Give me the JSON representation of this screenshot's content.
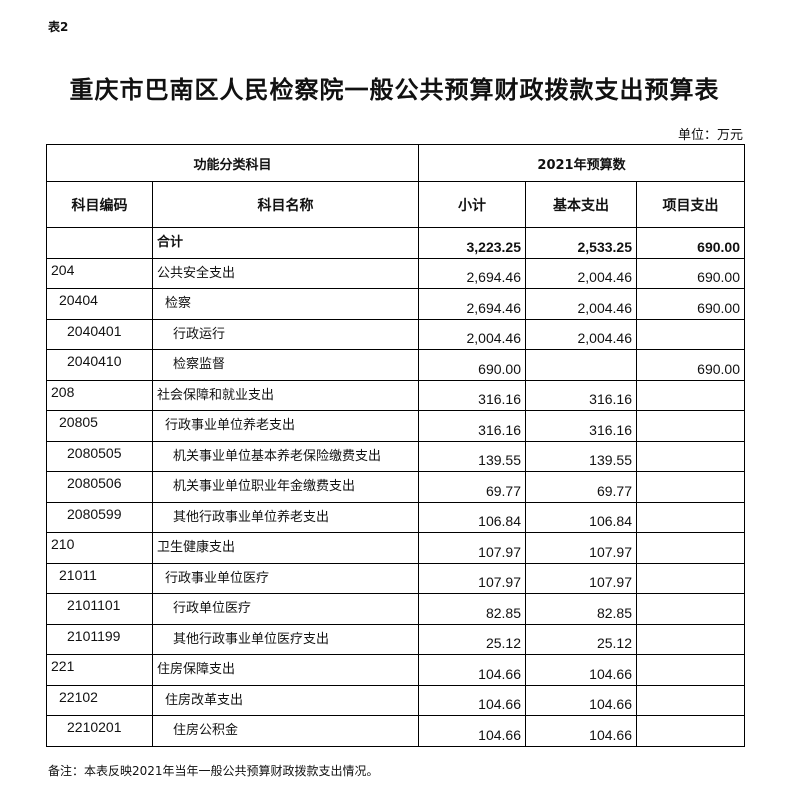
{
  "doc_label": "表2",
  "title": "重庆市巴南区人民检察院一般公共预算财政拨款支出预算表",
  "unit": "单位：万元",
  "header": {
    "group1": "功能分类科目",
    "group2": "2021年预算数",
    "code": "科目编码",
    "name": "科目名称",
    "subtotal": "小计",
    "basic": "基本支出",
    "project": "项目支出"
  },
  "rows": [
    {
      "code": "",
      "name": "合计",
      "subtotal": "3,223.25",
      "basic": "2,533.25",
      "project": "690.00",
      "level": 0,
      "total": true
    },
    {
      "code": "204",
      "name": "公共安全支出",
      "subtotal": "2,694.46",
      "basic": "2,004.46",
      "project": "690.00",
      "level": 1
    },
    {
      "code": "20404",
      "name": "检察",
      "subtotal": "2,694.46",
      "basic": "2,004.46",
      "project": "690.00",
      "level": 2
    },
    {
      "code": "2040401",
      "name": "行政运行",
      "subtotal": "2,004.46",
      "basic": "2,004.46",
      "project": "",
      "level": 3
    },
    {
      "code": "2040410",
      "name": "检察监督",
      "subtotal": "690.00",
      "basic": "",
      "project": "690.00",
      "level": 3
    },
    {
      "code": "208",
      "name": "社会保障和就业支出",
      "subtotal": "316.16",
      "basic": "316.16",
      "project": "",
      "level": 1
    },
    {
      "code": "20805",
      "name": "行政事业单位养老支出",
      "subtotal": "316.16",
      "basic": "316.16",
      "project": "",
      "level": 2
    },
    {
      "code": "2080505",
      "name": "机关事业单位基本养老保险缴费支出",
      "subtotal": "139.55",
      "basic": "139.55",
      "project": "",
      "level": 3
    },
    {
      "code": "2080506",
      "name": "机关事业单位职业年金缴费支出",
      "subtotal": "69.77",
      "basic": "69.77",
      "project": "",
      "level": 3
    },
    {
      "code": "2080599",
      "name": "其他行政事业单位养老支出",
      "subtotal": "106.84",
      "basic": "106.84",
      "project": "",
      "level": 3
    },
    {
      "code": "210",
      "name": "卫生健康支出",
      "subtotal": "107.97",
      "basic": "107.97",
      "project": "",
      "level": 1
    },
    {
      "code": "21011",
      "name": "行政事业单位医疗",
      "subtotal": "107.97",
      "basic": "107.97",
      "project": "",
      "level": 2
    },
    {
      "code": "2101101",
      "name": "行政单位医疗",
      "subtotal": "82.85",
      "basic": "82.85",
      "project": "",
      "level": 3
    },
    {
      "code": "2101199",
      "name": "其他行政事业单位医疗支出",
      "subtotal": "25.12",
      "basic": "25.12",
      "project": "",
      "level": 3
    },
    {
      "code": "221",
      "name": "住房保障支出",
      "subtotal": "104.66",
      "basic": "104.66",
      "project": "",
      "level": 1
    },
    {
      "code": "22102",
      "name": "住房改革支出",
      "subtotal": "104.66",
      "basic": "104.66",
      "project": "",
      "level": 2
    },
    {
      "code": "2210201",
      "name": "住房公积金",
      "subtotal": "104.66",
      "basic": "104.66",
      "project": "",
      "level": 3
    }
  ],
  "note": "备注：本表反映2021年当年一般公共预算财政拨款支出情况。"
}
